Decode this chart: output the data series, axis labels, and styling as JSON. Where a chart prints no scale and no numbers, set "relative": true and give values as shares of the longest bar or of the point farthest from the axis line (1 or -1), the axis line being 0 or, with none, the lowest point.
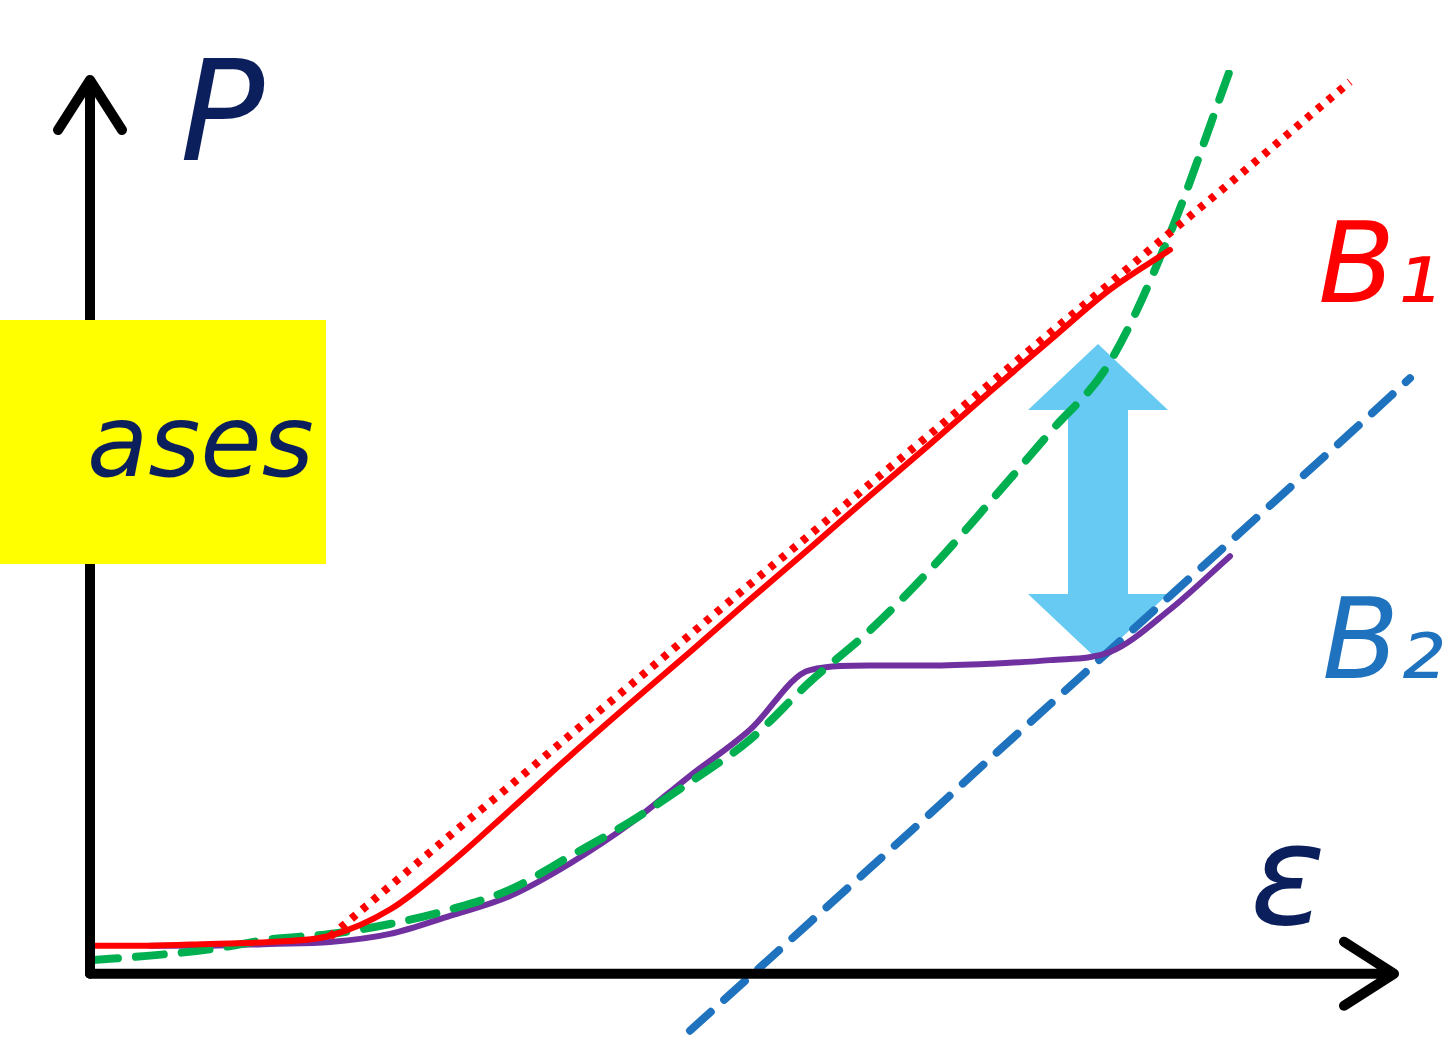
{
  "chart_data": {
    "type": "line",
    "relative": true,
    "xlabel": "ε",
    "ylabel": "P",
    "marker": "none",
    "annotations": [
      "ases"
    ],
    "categories": [
      null,
      null,
      null,
      null,
      null,
      null,
      null,
      null,
      null,
      null,
      null,
      null,
      null,
      null,
      null,
      null,
      null,
      null,
      null,
      null,
      null,
      null,
      null
    ],
    "series": [
      {
        "color": "#ff0000",
        "line_style": "solid",
        "values": [
          0.031,
          0.031,
          0.033,
          0.035,
          0.042,
          0.071,
          0.122,
          0.181,
          0.241,
          0.299,
          0.356,
          0.414,
          0.471,
          0.529,
          0.586,
          0.644,
          0.701,
          0.757,
          0.801,
          null,
          null,
          null,
          null
        ]
      },
      {
        "name": "B₁",
        "color": "#ff0000",
        "line_style": "dotted",
        "values": [
          null,
          null,
          null,
          null,
          0.041,
          0.097,
          0.153,
          0.208,
          0.264,
          0.319,
          0.375,
          0.431,
          0.486,
          0.542,
          0.597,
          0.653,
          0.709,
          0.764,
          0.82,
          0.875,
          0.931,
          0.987,
          null
        ]
      },
      {
        "color": "#00b050",
        "line_style": "dashed",
        "values": [
          0.015,
          0.02,
          0.027,
          0.038,
          0.044,
          0.055,
          0.071,
          0.093,
          0.13,
          0.168,
          0.212,
          0.259,
          0.323,
          0.38,
          0.447,
          0.522,
          0.599,
          0.677,
          0.819,
          1.0,
          null,
          null,
          null
        ]
      },
      {
        "color": "#7030a0",
        "line_style": "solid",
        "values": [
          null,
          0.031,
          0.031,
          0.033,
          0.035,
          0.044,
          0.064,
          0.086,
          0.122,
          0.166,
          0.219,
          0.27,
          0.336,
          0.341,
          0.341,
          0.343,
          0.347,
          0.356,
          0.403,
          0.462,
          null,
          null,
          null
        ]
      },
      {
        "name": "B₂",
        "color": "#1f73be",
        "line_style": "dashed",
        "values": [
          null,
          null,
          null,
          null,
          null,
          null,
          null,
          null,
          null,
          null,
          -0.063,
          -0.003,
          0.057,
          0.117,
          0.177,
          0.238,
          0.298,
          0.358,
          0.418,
          0.478,
          0.538,
          0.598,
          0.659
        ]
      }
    ]
  }
}
